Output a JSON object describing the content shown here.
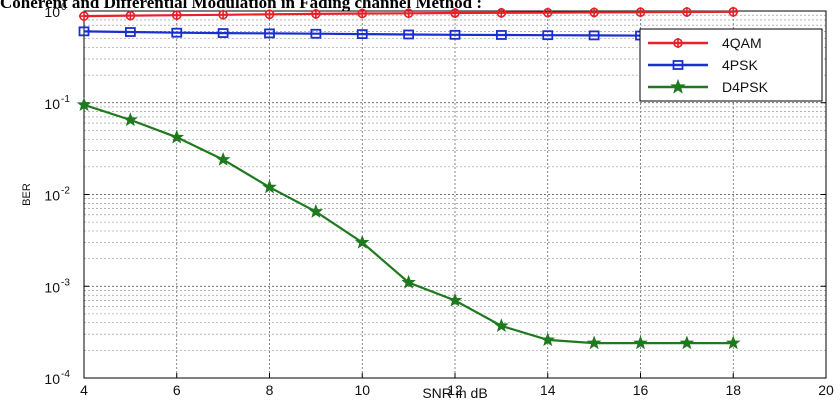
{
  "chart_data": {
    "type": "line",
    "title": "Coherent and Differential Modulation in Fading channel Method :",
    "xlabel": "SNR in dB",
    "ylabel": "BER",
    "xlim": [
      4,
      20
    ],
    "ylim": [
      0.0001,
      1
    ],
    "yscale": "log",
    "grid": true,
    "legend_position": "top-right",
    "x_ticks": [
      "4",
      "6",
      "8",
      "10",
      "12",
      "14",
      "16",
      "18",
      "20"
    ],
    "y_ticks": [
      {
        "base": "10",
        "exp": "-4"
      },
      {
        "base": "10",
        "exp": "-3"
      },
      {
        "base": "10",
        "exp": "-2"
      },
      {
        "base": "10",
        "exp": "-1"
      },
      {
        "base": "10",
        "exp": "0"
      }
    ],
    "x": [
      4,
      5,
      6,
      7,
      8,
      9,
      10,
      11,
      12,
      13,
      14,
      15,
      16,
      17,
      18
    ],
    "series": [
      {
        "name": "4QAM",
        "color": "#e8202a",
        "marker": "plus-circle",
        "values": [
          0.88,
          0.89,
          0.9,
          0.91,
          0.92,
          0.93,
          0.94,
          0.945,
          0.95,
          0.955,
          0.96,
          0.965,
          0.97,
          0.975,
          0.98
        ]
      },
      {
        "name": "4PSK",
        "color": "#1a2fd0",
        "marker": "square",
        "values": [
          0.6,
          0.59,
          0.58,
          0.575,
          0.57,
          0.565,
          0.56,
          0.555,
          0.55,
          0.548,
          0.545,
          0.542,
          0.54,
          0.538,
          0.535
        ]
      },
      {
        "name": "D4PSK",
        "color": "#1f7a1f",
        "marker": "star",
        "values": [
          0.095,
          0.065,
          0.042,
          0.024,
          0.012,
          0.0065,
          0.003,
          0.0011,
          0.0007,
          0.00037,
          0.00026,
          0.00024,
          0.00024,
          0.00024,
          0.00024
        ]
      }
    ]
  }
}
